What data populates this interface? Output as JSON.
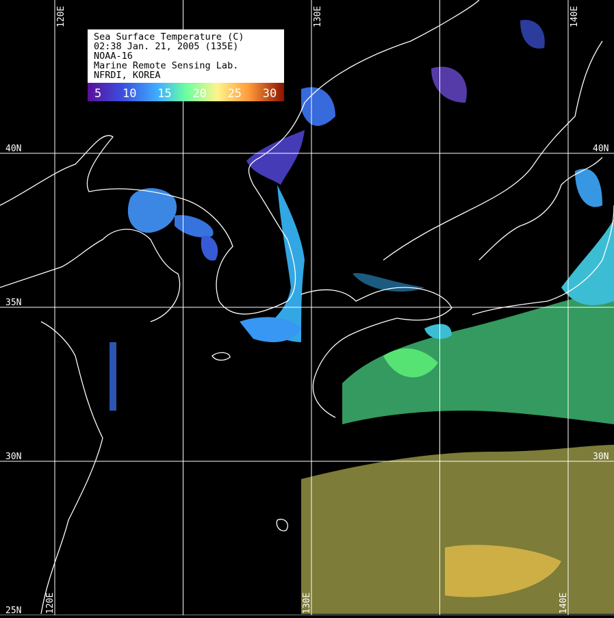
{
  "legend": {
    "lines": [
      "Sea Surface Temperature (C)",
      "02:38 Jan. 21, 2005 (135E)",
      "NOAA-16",
      "Marine Remote Sensing Lab.",
      "NFRDI, KOREA"
    ]
  },
  "colorbar": {
    "ticks": [
      5,
      10,
      15,
      20,
      25,
      30
    ]
  },
  "grid": {
    "lon_ticks": [
      {
        "value": 120,
        "label": "120E"
      },
      125,
      {
        "value": 130,
        "label": "130E"
      },
      135,
      {
        "value": 140,
        "label": "140E"
      }
    ],
    "lat_ticks": [
      {
        "value": 40,
        "label": "40N"
      },
      {
        "value": 35,
        "label": "35N"
      },
      {
        "value": 30,
        "label": "30N"
      },
      {
        "value": 25,
        "label": "25N"
      }
    ]
  }
}
